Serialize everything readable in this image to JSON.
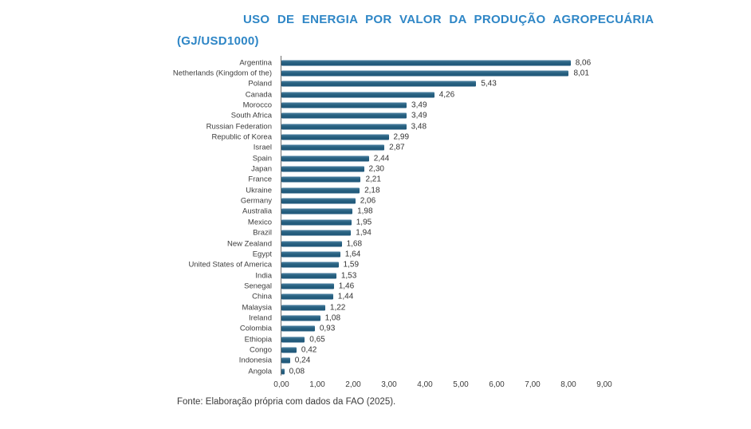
{
  "title": {
    "line1": "USO DE ENERGIA POR VALOR DA PRODUÇÃO AGROPECUÁRIA",
    "line2": "(GJ/USD1000)",
    "color": "#2e86c6"
  },
  "footer": "Fonte: Elaboração própria com dados da FAO (2025).",
  "chart_data": {
    "type": "bar",
    "orientation": "horizontal",
    "title": "USO DE ENERGIA POR VALOR DA PRODUÇÃO AGROPECUÁRIA (GJ/USD1000)",
    "source": "Fonte: Elaboração própria com dados da FAO (2025).",
    "xlabel": "",
    "ylabel": "",
    "xlim": [
      0,
      9
    ],
    "grid": false,
    "legend": false,
    "bar_color": "#27607f",
    "axis_color": "#6d6d6d",
    "x_ticks": [
      "0,00",
      "1,00",
      "2,00",
      "3,00",
      "4,00",
      "5,00",
      "6,00",
      "7,00",
      "8,00",
      "9,00"
    ],
    "x_tick_values": [
      0,
      1,
      2,
      3,
      4,
      5,
      6,
      7,
      8,
      9
    ],
    "categories": [
      "Argentina",
      "Netherlands (Kingdom of the)",
      "Poland",
      "Canada",
      "Morocco",
      "South Africa",
      "Russian Federation",
      "Republic of Korea",
      "Israel",
      "Spain",
      "Japan",
      "France",
      "Ukraine",
      "Germany",
      "Australia",
      "Mexico",
      "Brazil",
      "New Zealand",
      "Egypt",
      "United States of America",
      "India",
      "Senegal",
      "China",
      "Malaysia",
      "Ireland",
      "Colombia",
      "Ethiopia",
      "Congo",
      "Indonesia",
      "Angola"
    ],
    "values": [
      8.06,
      8.01,
      5.43,
      4.26,
      3.49,
      3.49,
      3.48,
      2.99,
      2.87,
      2.44,
      2.3,
      2.21,
      2.18,
      2.06,
      1.98,
      1.95,
      1.94,
      1.68,
      1.64,
      1.59,
      1.53,
      1.46,
      1.44,
      1.22,
      1.08,
      0.93,
      0.65,
      0.42,
      0.24,
      0.08
    ],
    "value_labels": [
      "8,06",
      "8,01",
      "5,43",
      "4,26",
      "3,49",
      "3,49",
      "3,48",
      "2,99",
      "2,87",
      "2,44",
      "2,30",
      "2,21",
      "2,18",
      "2,06",
      "1,98",
      "1,95",
      "1,94",
      "1,68",
      "1,64",
      "1,59",
      "1,53",
      "1,46",
      "1,44",
      "1,22",
      "1,08",
      "0,93",
      "0,65",
      "0,42",
      "0,24",
      "0,08"
    ]
  }
}
